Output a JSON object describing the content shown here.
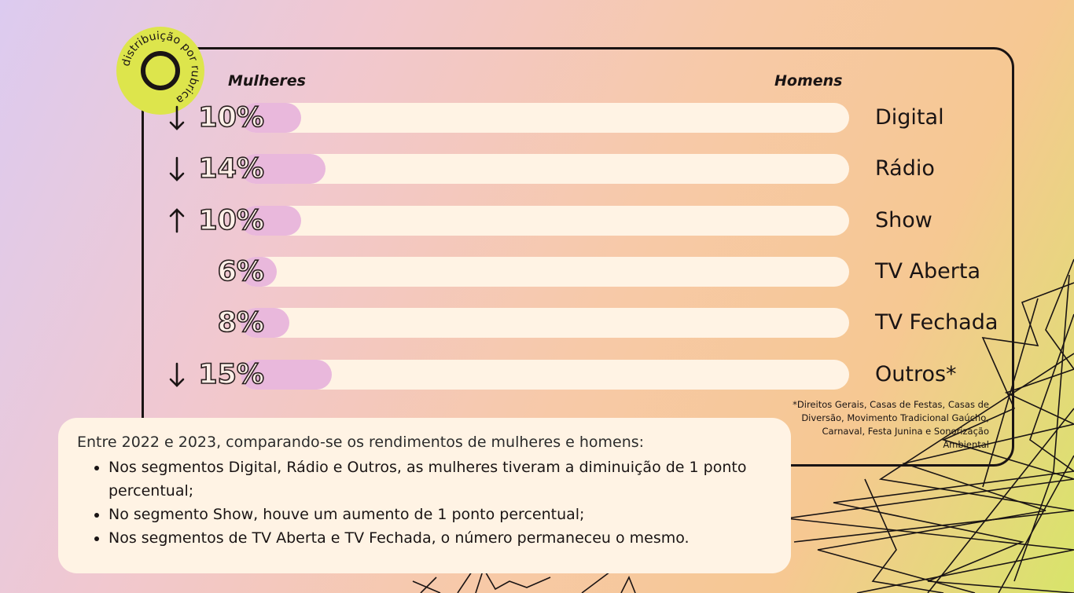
{
  "badge_text": "distribuição por rubrica",
  "chart_data": {
    "type": "bar",
    "left_header": "Mulheres",
    "right_header": "Homens",
    "categories": [
      "Digital",
      "Rádio",
      "Show",
      "TV Aberta",
      "TV Fechada",
      "Outros*"
    ],
    "labels": [
      "10%",
      "14%",
      "10%",
      "6%",
      "8%",
      "15%"
    ],
    "values": [
      10,
      14,
      10,
      6,
      8,
      15
    ],
    "trend": [
      "down",
      "down",
      "up",
      "none",
      "none",
      "down"
    ],
    "ylim": [
      0,
      100
    ]
  },
  "footnote": "*Direitos Gerais, Casas de Festas, Casas de Diversão, Movimento Tradicional Gaúcho, Carnaval, Festa Junina e Sonorização Ambiental",
  "summary": {
    "intro": "Entre 2022 e 2023, comparando-se os rendimentos de mulheres e homens:",
    "bullets": [
      "Nos segmentos Digital, Rádio e Outros, as mulheres tiveram a diminuição de 1 ponto percentual;",
      "No segmento Show, houve um aumento de 1 ponto percentual;",
      "Nos segmentos de TV Aberta e TV Fechada, o número permaneceu o mesmo."
    ]
  },
  "colors": {
    "women_fill": "#e9b8dc",
    "track": "#fff3e4",
    "badge": "#dde54c",
    "ink": "#1a1414"
  }
}
